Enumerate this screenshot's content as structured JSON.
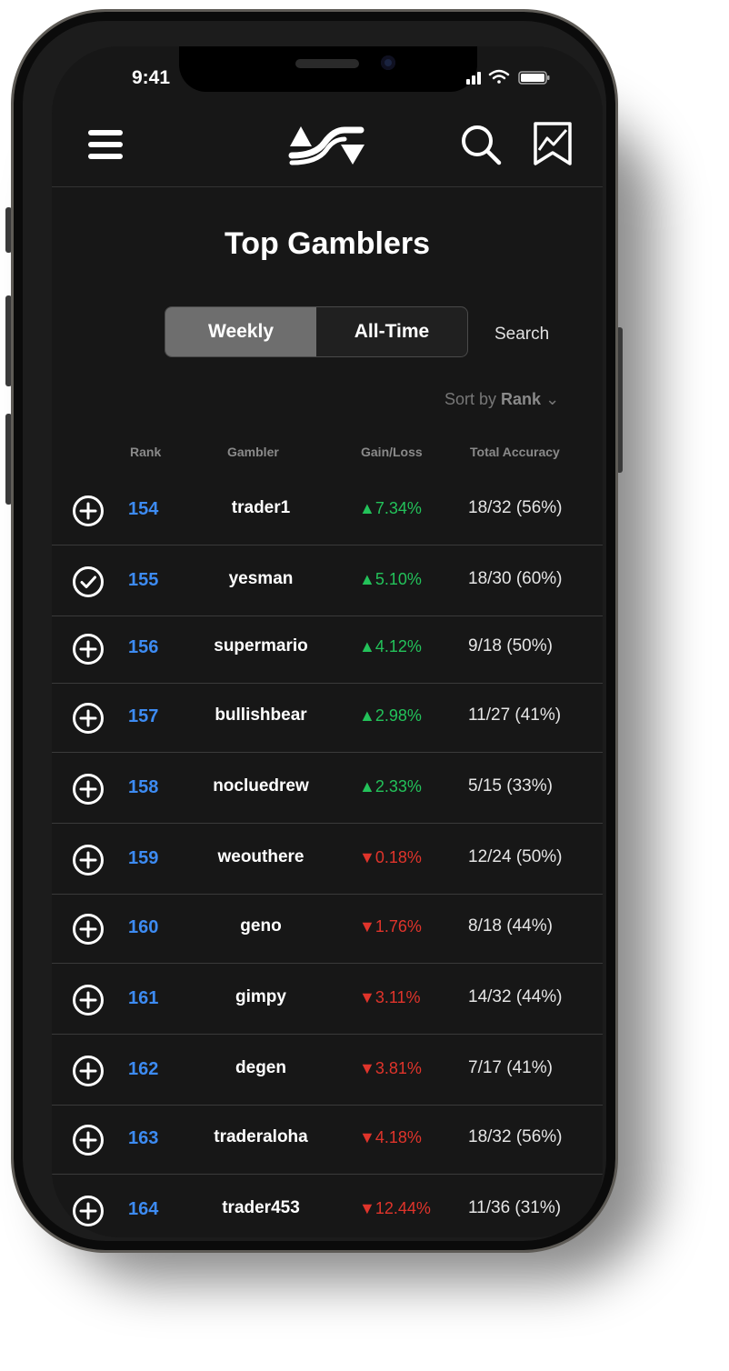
{
  "status_bar": {
    "time": "9:41"
  },
  "header": {
    "menu_icon": "hamburger-icon",
    "logo": "logo-mark",
    "search_icon": "search-icon",
    "chart_icon": "bookmark-chart-icon"
  },
  "page": {
    "title": "Top Gamblers"
  },
  "segmented": {
    "weekly": "Weekly",
    "all_time": "All-Time",
    "search": "Search"
  },
  "sort": {
    "prefix": "Sort by",
    "value": "Rank",
    "chevron": "⌄"
  },
  "table": {
    "headers": {
      "rank": "Rank",
      "gambler": "Gambler",
      "gain_loss": "Gain/Loss",
      "accuracy": "Total Accuracy"
    },
    "rows": [
      {
        "icon": "plus-circle-icon",
        "rank": "154",
        "name": "trader1",
        "dir": "up",
        "arrow": "▲",
        "gain": "7.34%",
        "accuracy": "18/32 (56%)"
      },
      {
        "icon": "check-circle-icon",
        "rank": "155",
        "name": "yesman",
        "dir": "up",
        "arrow": "▲",
        "gain": "5.10%",
        "accuracy": "18/30 (60%)"
      },
      {
        "icon": "plus-circle-icon",
        "rank": "156",
        "name": "supermario",
        "dir": "up",
        "arrow": "▲",
        "gain": "4.12%",
        "accuracy": "9/18 (50%)"
      },
      {
        "icon": "plus-circle-icon",
        "rank": "157",
        "name": "bullishbear",
        "dir": "up",
        "arrow": "▲",
        "gain": "2.98%",
        "accuracy": "11/27 (41%)"
      },
      {
        "icon": "plus-circle-icon",
        "rank": "158",
        "name": "nocluedrew",
        "dir": "up",
        "arrow": "▲",
        "gain": "2.33%",
        "accuracy": "5/15 (33%)"
      },
      {
        "icon": "plus-circle-icon",
        "rank": "159",
        "name": "weouthere",
        "dir": "down",
        "arrow": "▼",
        "gain": "0.18%",
        "accuracy": "12/24 (50%)"
      },
      {
        "icon": "plus-circle-icon",
        "rank": "160",
        "name": "geno",
        "dir": "down",
        "arrow": "▼",
        "gain": "1.76%",
        "accuracy": "8/18 (44%)"
      },
      {
        "icon": "plus-circle-icon",
        "rank": "161",
        "name": "gimpy",
        "dir": "down",
        "arrow": "▼",
        "gain": "3.11%",
        "accuracy": "14/32 (44%)"
      },
      {
        "icon": "plus-circle-icon",
        "rank": "162",
        "name": "degen",
        "dir": "down",
        "arrow": "▼",
        "gain": "3.81%",
        "accuracy": "7/17 (41%)"
      },
      {
        "icon": "plus-circle-icon",
        "rank": "163",
        "name": "traderaloha",
        "dir": "down",
        "arrow": "▼",
        "gain": "4.18%",
        "accuracy": "18/32 (56%)"
      },
      {
        "icon": "plus-circle-icon",
        "rank": "164",
        "name": "trader453",
        "dir": "down",
        "arrow": "▼",
        "gain": "12.44%",
        "accuracy": "11/36 (31%)"
      }
    ]
  },
  "colors": {
    "up": "#23c25a",
    "down": "#e0342b",
    "rank": "#3d8bf2",
    "background": "#171717"
  }
}
